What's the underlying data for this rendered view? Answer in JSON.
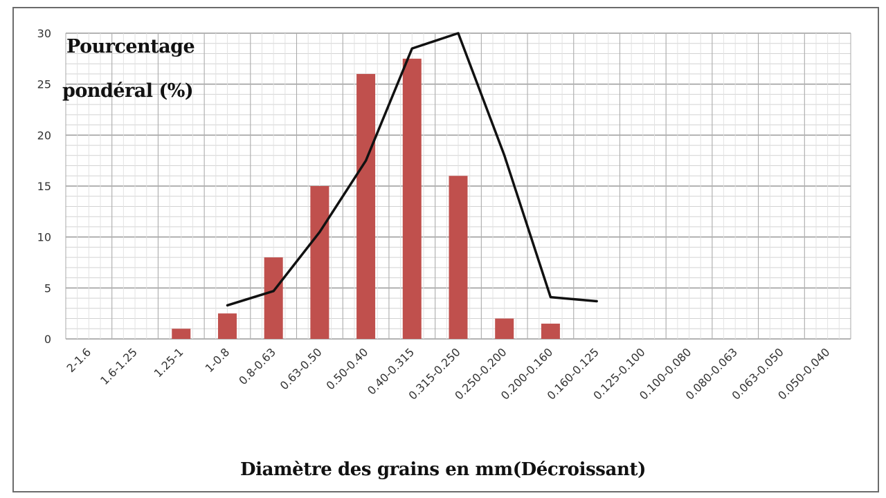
{
  "chart_data": {
    "type": "bar",
    "categories": [
      "2-1.6",
      "1.6-1.25",
      "1.25-1",
      "1-0.8",
      "0.8-0.63",
      "0.63-0.50",
      "0.50-0.40",
      "0.40-0.315",
      "0.315-0.250",
      "0.250-0.200",
      "0.200-0.160",
      "0.160-0.125",
      "0.125-0.100",
      "0.100-0.080",
      "0.080-0.063",
      "0.063-0.050",
      "0.050-0.040"
    ],
    "series": [
      {
        "kind": "bar",
        "color": "#c0504d",
        "values": [
          0,
          0,
          1.0,
          2.5,
          8.0,
          15.0,
          26.0,
          27.5,
          16.0,
          2.0,
          1.5,
          0,
          0,
          0,
          0,
          0,
          0
        ]
      },
      {
        "kind": "line",
        "color": "#111111",
        "values": [
          null,
          null,
          null,
          3.3,
          4.7,
          10.5,
          17.5,
          28.5,
          30.0,
          18.0,
          4.1,
          3.7,
          null,
          null,
          null,
          null,
          null
        ]
      }
    ],
    "y_ticks": [
      "0",
      "5",
      "10",
      "15",
      "20",
      "25",
      "30"
    ],
    "ylim": [
      0,
      30
    ],
    "ylabel_line1": "Pourcentage",
    "ylabel_line2": "pondéral (%)",
    "xlabel": "Diamètre des grains en mm(Décroissant)",
    "grid": true
  }
}
